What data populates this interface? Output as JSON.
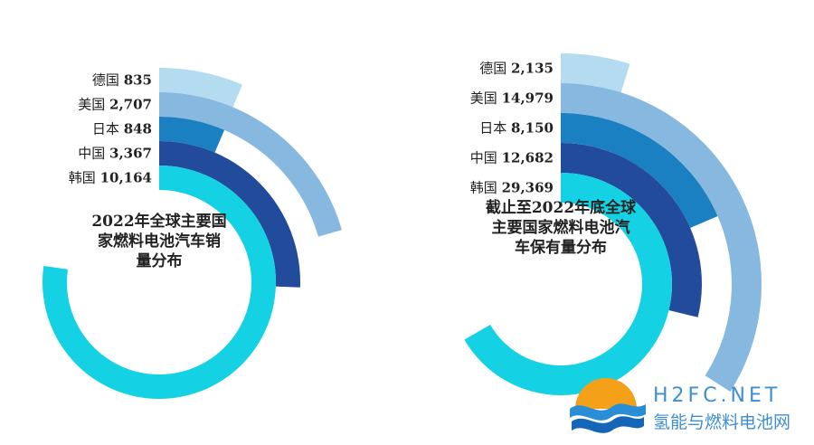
{
  "chart_data": [
    {
      "type": "radial-bar",
      "title_lines": [
        "2022年全球主要国",
        "家燃料电池汽车销",
        "量分布"
      ],
      "categories": [
        "德国",
        "美国",
        "日本",
        "中国",
        "韩国"
      ],
      "values": [
        835,
        2707,
        848,
        3367,
        10164
      ],
      "value_labels": [
        "835",
        "2,707",
        "848",
        "3,367",
        "10,164"
      ]
    },
    {
      "type": "radial-bar",
      "title_lines": [
        "截止至2022年底全球",
        "主要国家燃料电池汽",
        "车保有量分布"
      ],
      "categories": [
        "德国",
        "美国",
        "日本",
        "中国",
        "韩国"
      ],
      "values": [
        2135,
        14979,
        8150,
        12682,
        29369
      ],
      "value_labels": [
        "2,135",
        "14,979",
        "8,150",
        "12,682",
        "29,369"
      ]
    }
  ],
  "colors": [
    "#b5dbf1",
    "#87b8e0",
    "#1b80c2",
    "#224c9b",
    "#14d2e3"
  ],
  "watermark": {
    "brand": "H2FC.NET",
    "subtitle": "氢能与燃料电池网"
  }
}
